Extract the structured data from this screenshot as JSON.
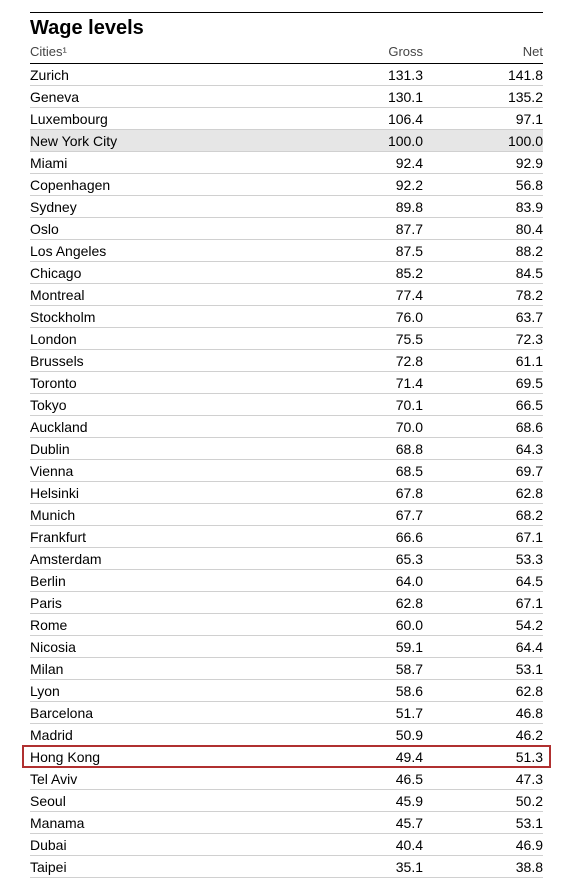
{
  "title": "Wage levels",
  "columns": {
    "city": "Cities¹",
    "gross": "Gross",
    "net": "Net"
  },
  "reference_row_index": 3,
  "highlight_row_index": 31,
  "highlight_border_color": "#b03030",
  "reference_bg_color": "#e6e6e6",
  "rows": [
    {
      "city": "Zurich",
      "gross": "131.3",
      "net": "141.8"
    },
    {
      "city": "Geneva",
      "gross": "130.1",
      "net": "135.2"
    },
    {
      "city": "Luxembourg",
      "gross": "106.4",
      "net": "97.1"
    },
    {
      "city": "New York City",
      "gross": "100.0",
      "net": "100.0"
    },
    {
      "city": "Miami",
      "gross": "92.4",
      "net": "92.9"
    },
    {
      "city": "Copenhagen",
      "gross": "92.2",
      "net": "56.8"
    },
    {
      "city": "Sydney",
      "gross": "89.8",
      "net": "83.9"
    },
    {
      "city": "Oslo",
      "gross": "87.7",
      "net": "80.4"
    },
    {
      "city": "Los Angeles",
      "gross": "87.5",
      "net": "88.2"
    },
    {
      "city": "Chicago",
      "gross": "85.2",
      "net": "84.5"
    },
    {
      "city": "Montreal",
      "gross": "77.4",
      "net": "78.2"
    },
    {
      "city": "Stockholm",
      "gross": "76.0",
      "net": "63.7"
    },
    {
      "city": "London",
      "gross": "75.5",
      "net": "72.3"
    },
    {
      "city": "Brussels",
      "gross": "72.8",
      "net": "61.1"
    },
    {
      "city": "Toronto",
      "gross": "71.4",
      "net": "69.5"
    },
    {
      "city": "Tokyo",
      "gross": "70.1",
      "net": "66.5"
    },
    {
      "city": "Auckland",
      "gross": "70.0",
      "net": "68.6"
    },
    {
      "city": "Dublin",
      "gross": "68.8",
      "net": "64.3"
    },
    {
      "city": "Vienna",
      "gross": "68.5",
      "net": "69.7"
    },
    {
      "city": "Helsinki",
      "gross": "67.8",
      "net": "62.8"
    },
    {
      "city": "Munich",
      "gross": "67.7",
      "net": "68.2"
    },
    {
      "city": "Frankfurt",
      "gross": "66.6",
      "net": "67.1"
    },
    {
      "city": "Amsterdam",
      "gross": "65.3",
      "net": "53.3"
    },
    {
      "city": "Berlin",
      "gross": "64.0",
      "net": "64.5"
    },
    {
      "city": "Paris",
      "gross": "62.8",
      "net": "67.1"
    },
    {
      "city": "Rome",
      "gross": "60.0",
      "net": "54.2"
    },
    {
      "city": "Nicosia",
      "gross": "59.1",
      "net": "64.4"
    },
    {
      "city": "Milan",
      "gross": "58.7",
      "net": "53.1"
    },
    {
      "city": "Lyon",
      "gross": "58.6",
      "net": "62.8"
    },
    {
      "city": "Barcelona",
      "gross": "51.7",
      "net": "46.8"
    },
    {
      "city": "Madrid",
      "gross": "50.9",
      "net": "46.2"
    },
    {
      "city": "Hong Kong",
      "gross": "49.4",
      "net": "51.3"
    },
    {
      "city": "Tel Aviv",
      "gross": "46.5",
      "net": "47.3"
    },
    {
      "city": "Seoul",
      "gross": "45.9",
      "net": "50.2"
    },
    {
      "city": "Manama",
      "gross": "45.7",
      "net": "53.1"
    },
    {
      "city": "Dubai",
      "gross": "40.4",
      "net": "46.9"
    },
    {
      "city": "Taipei",
      "gross": "35.1",
      "net": "38.8"
    }
  ]
}
